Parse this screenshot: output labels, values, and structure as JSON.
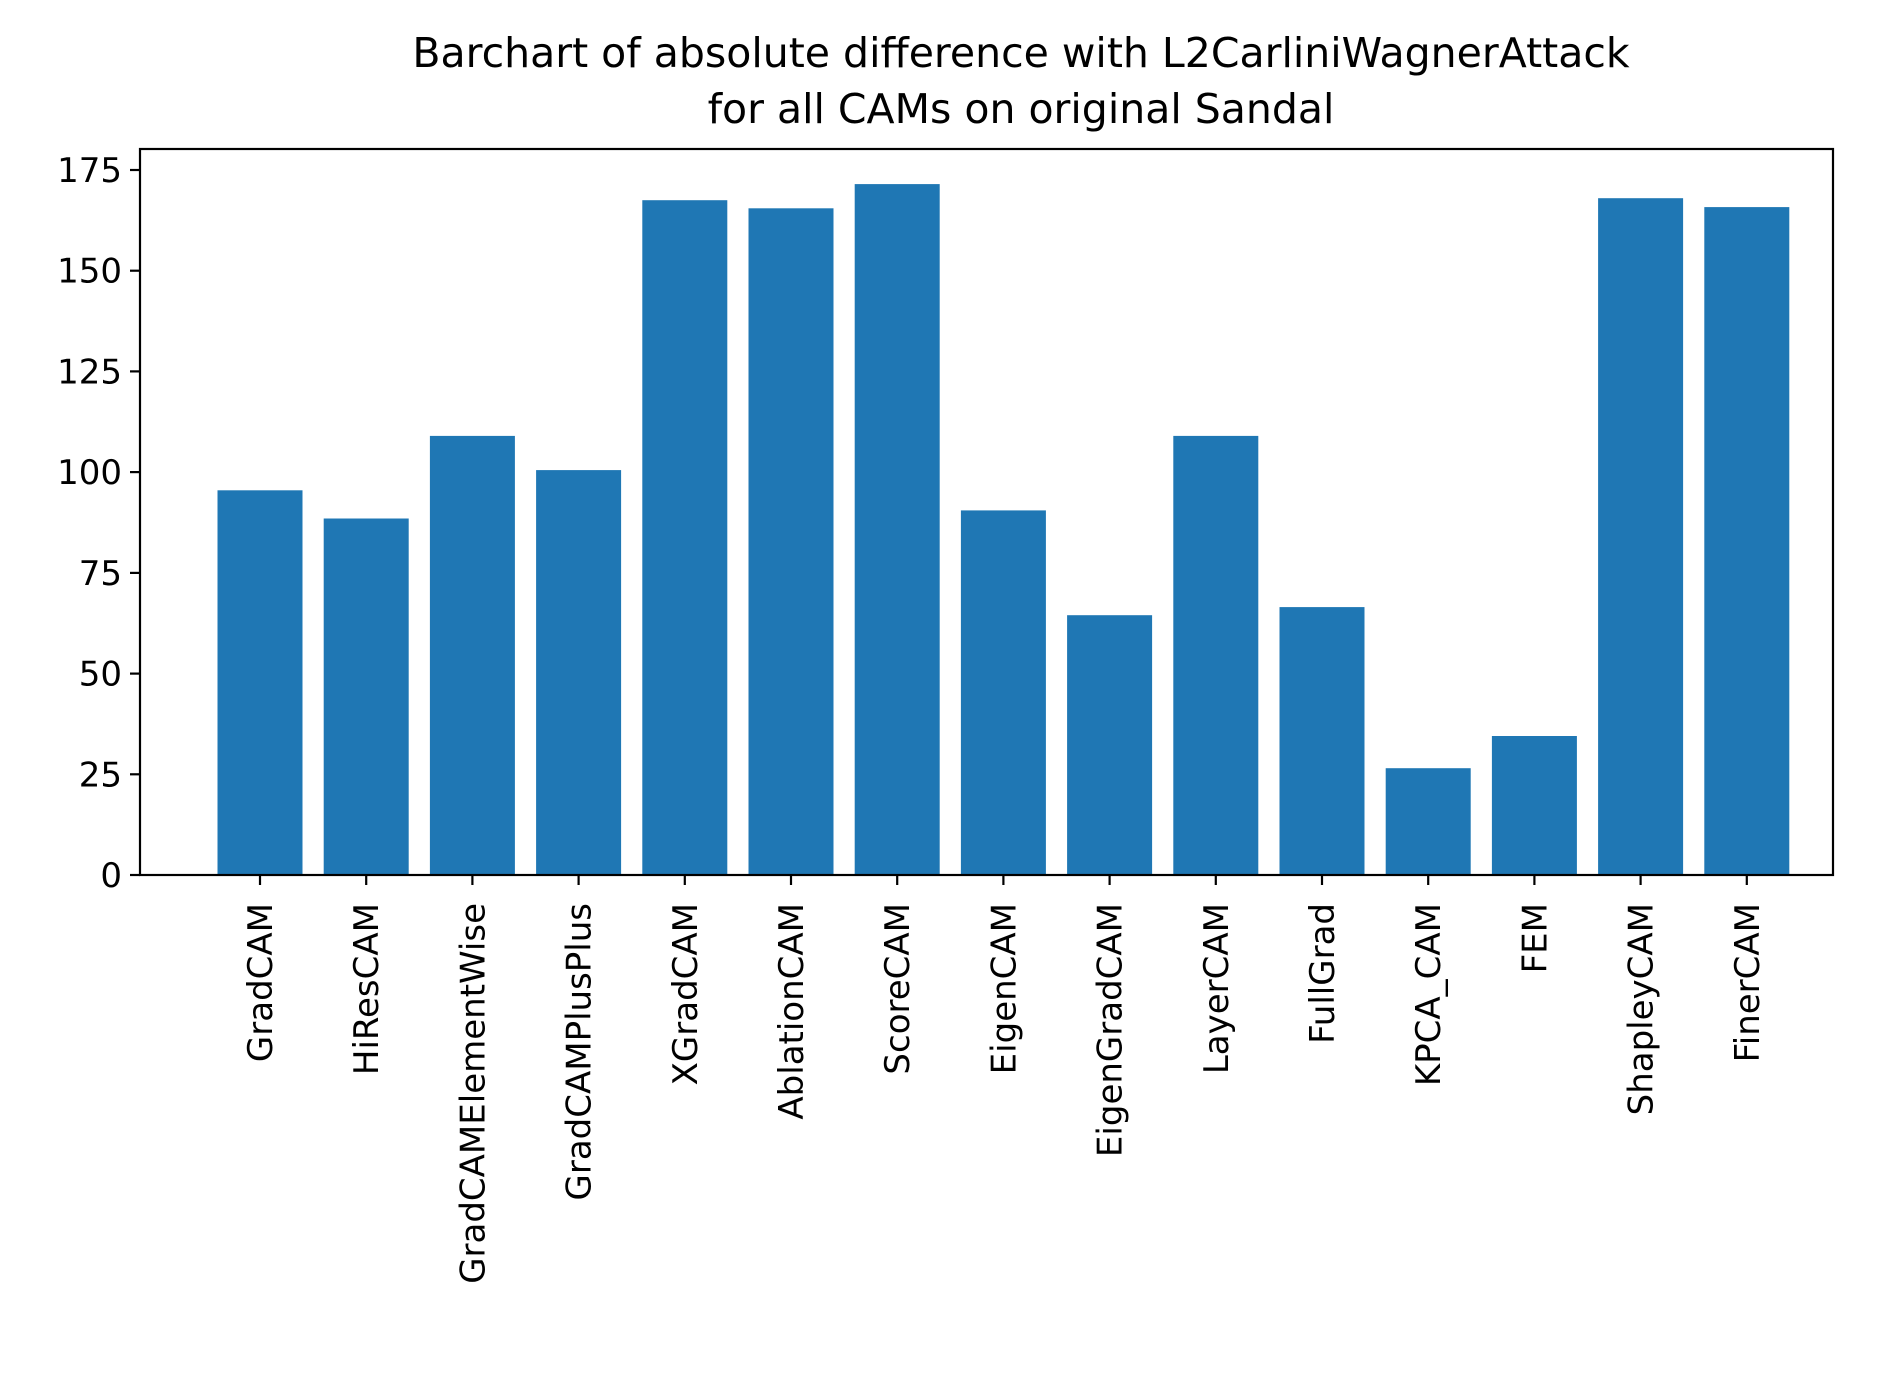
{
  "chart_data": {
    "type": "bar",
    "title_lines": [
      "Barchart of absolute difference with L2CarliniWagnerAttack",
      "for all CAMs on original Sandal"
    ],
    "xlabel": "",
    "ylabel": "",
    "categories": [
      "GradCAM",
      "HiResCAM",
      "GradCAMElementWise",
      "GradCAMPlusPlus",
      "XGradCAM",
      "AblationCAM",
      "ScoreCAM",
      "EigenCAM",
      "EigenGradCAM",
      "LayerCAM",
      "FullGrad",
      "KPCA_CAM",
      "FEM",
      "ShapleyCAM",
      "FinerCAM"
    ],
    "values": [
      95.5,
      88.5,
      109.0,
      100.5,
      167.5,
      165.5,
      171.5,
      90.5,
      64.5,
      109.0,
      66.5,
      26.5,
      34.5,
      168.0,
      165.8
    ],
    "ylim": [
      0,
      180
    ],
    "yticks": [
      0,
      25,
      50,
      75,
      100,
      125,
      150,
      175
    ],
    "grid": false,
    "legend": "none",
    "bar_color": "#1f77b4"
  }
}
